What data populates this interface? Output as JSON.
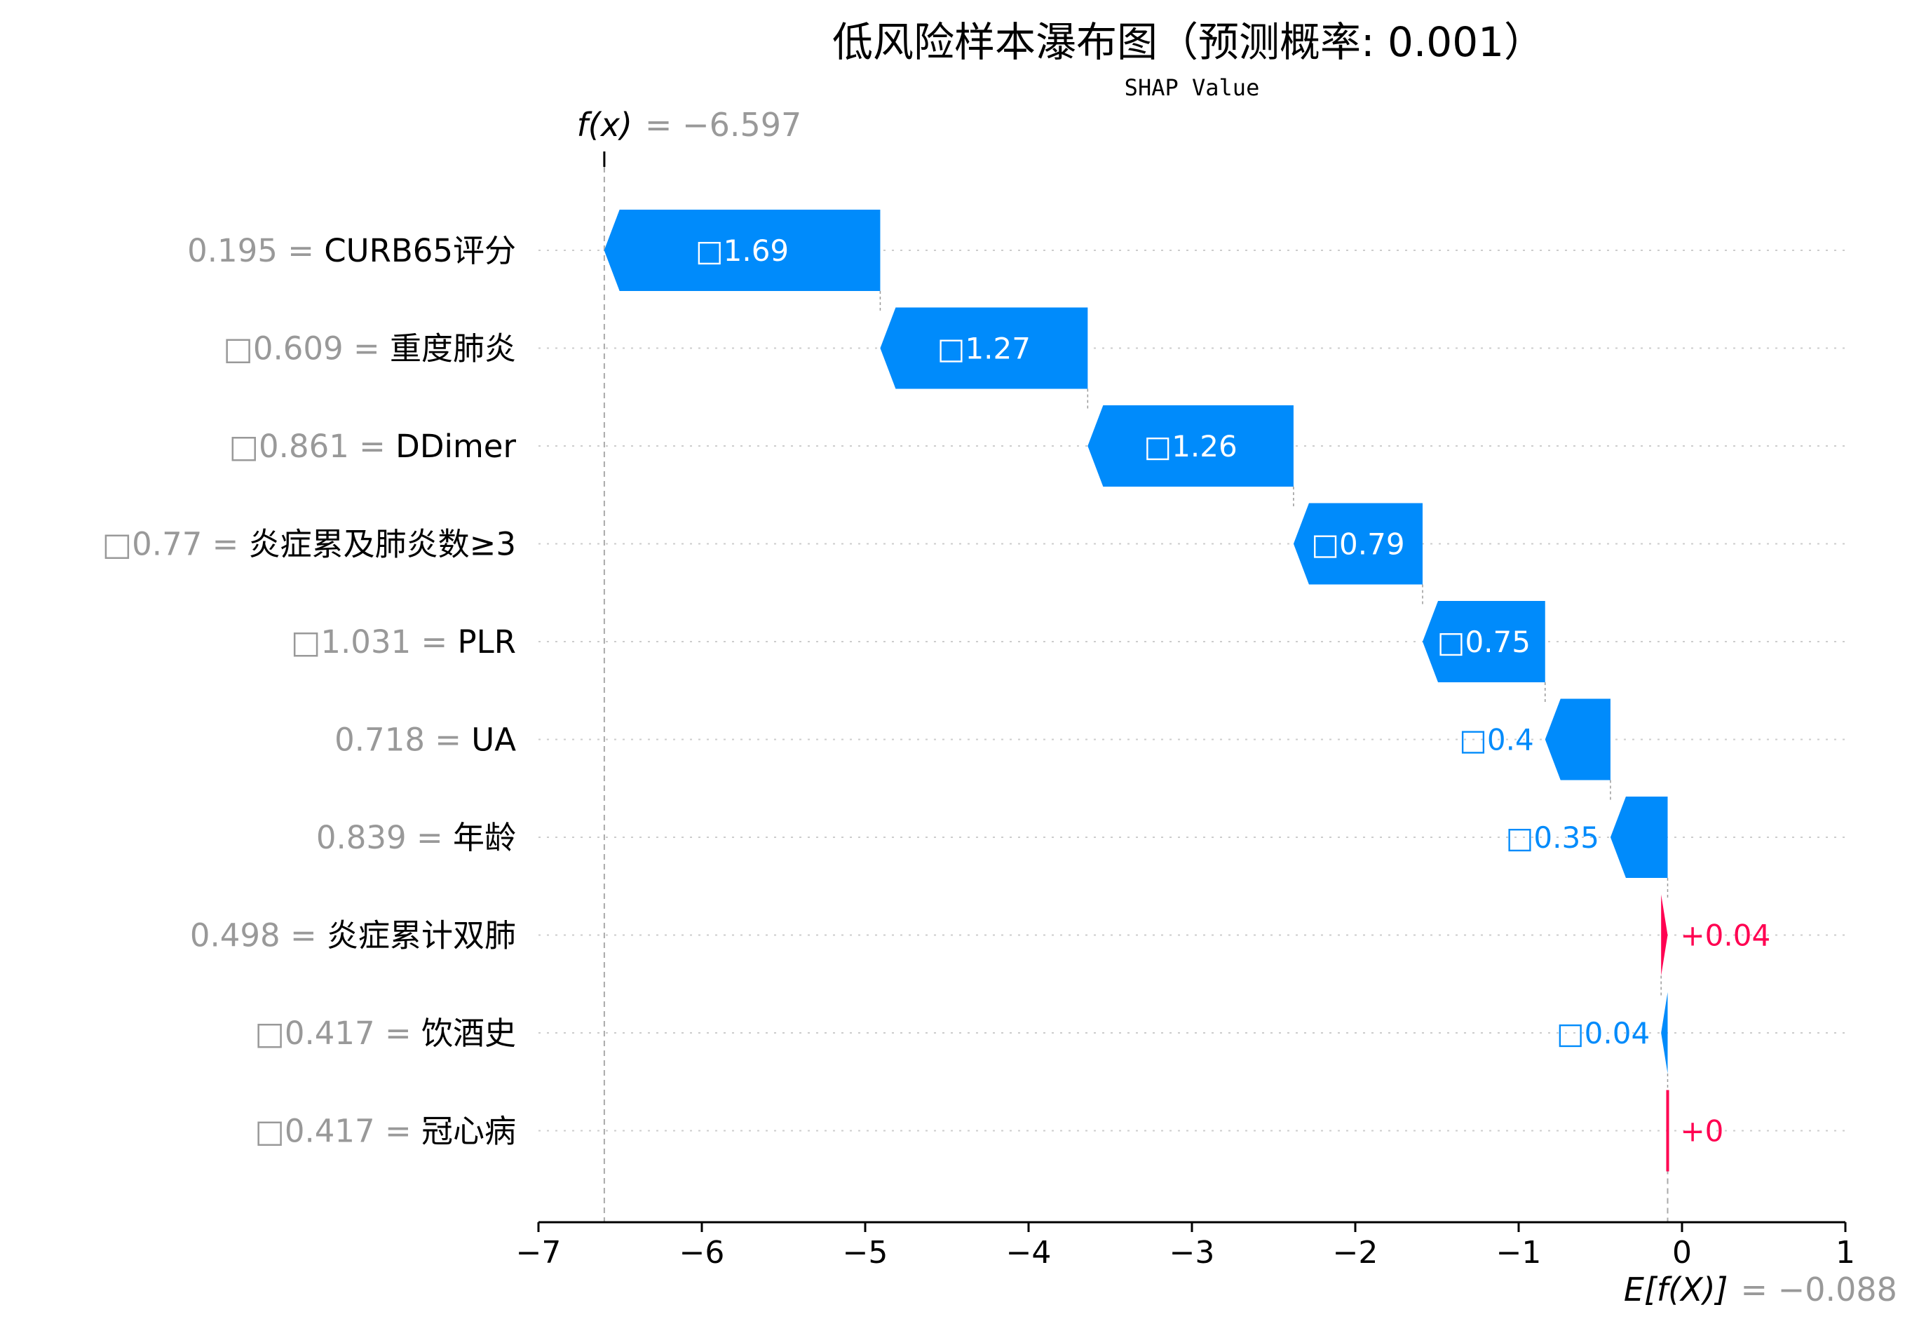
{
  "chart_data": {
    "type": "bar",
    "title": "低风险样本瀑布图（预测概率: 0.001）",
    "subtitle": "SHAP Value",
    "fx": {
      "label": "f(x)",
      "value_text": "= −6.597",
      "value": -6.597
    },
    "efx": {
      "label": "E[f(X)]",
      "value_text": "= −0.088",
      "value": -0.088
    },
    "xlim": [
      -7,
      1
    ],
    "xticks": [
      {
        "v": -7,
        "label": "−7"
      },
      {
        "v": -6,
        "label": "−6"
      },
      {
        "v": -5,
        "label": "−5"
      },
      {
        "v": -4,
        "label": "−4"
      },
      {
        "v": -3,
        "label": "−3"
      },
      {
        "v": -2,
        "label": "−2"
      },
      {
        "v": -1,
        "label": "−1"
      },
      {
        "v": 0,
        "label": "0"
      },
      {
        "v": 1,
        "label": "1"
      }
    ],
    "colors": {
      "negative": "#008bfb",
      "positive": "#ff0051",
      "muted": "#999999"
    },
    "features": [
      {
        "value_text": "0.195",
        "name": "CURB65评分",
        "shap": -1.69,
        "label": "□1.69"
      },
      {
        "value_text": "□0.609",
        "name": "重度肺炎",
        "shap": -1.27,
        "label": "□1.27"
      },
      {
        "value_text": "□0.861",
        "name": "DDimer",
        "shap": -1.26,
        "label": "□1.26"
      },
      {
        "value_text": "□0.77",
        "name": "炎症累及肺炎数≥3",
        "shap": -0.79,
        "label": "□0.79"
      },
      {
        "value_text": "□1.031",
        "name": "PLR",
        "shap": -0.75,
        "label": "□0.75"
      },
      {
        "value_text": "0.718",
        "name": "UA",
        "shap": -0.4,
        "label": "□0.4"
      },
      {
        "value_text": "0.839",
        "name": "年龄",
        "shap": -0.35,
        "label": "□0.35"
      },
      {
        "value_text": "0.498",
        "name": "炎症累计双肺",
        "shap": 0.04,
        "label": "+0.04"
      },
      {
        "value_text": "□0.417",
        "name": "饮酒史",
        "shap": -0.04,
        "label": "□0.04"
      },
      {
        "value_text": "□0.417",
        "name": "冠心病",
        "shap": 0.0,
        "label": "+0"
      }
    ]
  }
}
